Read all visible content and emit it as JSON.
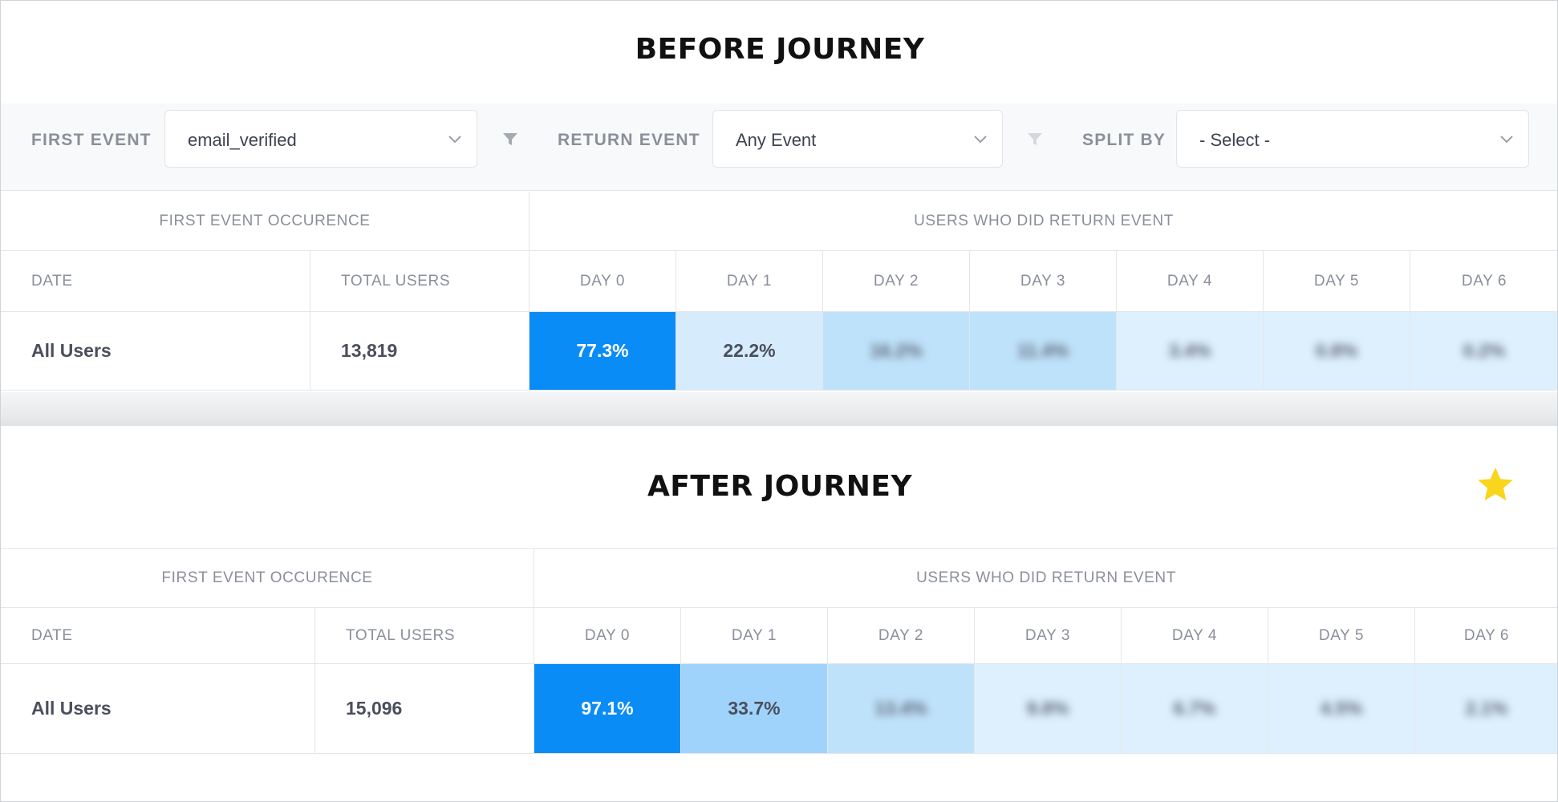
{
  "before": {
    "title": "BEFORE JOURNEY",
    "filters": {
      "first_event_label": "FIRST EVENT",
      "first_event_value": "email_verified",
      "return_event_label": "RETURN EVENT",
      "return_event_value": "Any Event",
      "split_by_label": "SPLIT BY",
      "split_by_value": "- Select -"
    },
    "table": {
      "group_left": "FIRST EVENT OCCURENCE",
      "group_right": "USERS WHO DID RETURN EVENT",
      "col_date": "DATE",
      "col_total": "TOTAL USERS",
      "days": [
        "DAY 0",
        "DAY 1",
        "DAY 2",
        "DAY 3",
        "DAY 4",
        "DAY 5",
        "DAY 6"
      ],
      "row_label": "All Users",
      "row_total": "13,819",
      "values": [
        "77.3%",
        "22.2%",
        "16.2%",
        "11.4%",
        "3.4%",
        "0.8%",
        "0.2%"
      ]
    }
  },
  "after": {
    "title": "AFTER JOURNEY",
    "table": {
      "group_left": "FIRST EVENT OCCURENCE",
      "group_right": "USERS WHO DID RETURN EVENT",
      "col_date": "DATE",
      "col_total": "TOTAL USERS",
      "days": [
        "DAY 0",
        "DAY 1",
        "DAY 2",
        "DAY 3",
        "DAY 4",
        "DAY 5",
        "DAY 6"
      ],
      "row_label": "All Users",
      "row_total": "15,096",
      "values": [
        "97.1%",
        "33.7%",
        "13.4%",
        "9.8%",
        "6.7%",
        "4.5%",
        "2.1%"
      ]
    }
  },
  "colors": {
    "day0": "#0a8cf7",
    "day1_before": "#d6ecfc",
    "day1_after": "#9fd3fb",
    "mid": "#bfe2fb",
    "light": "#def0fd",
    "title": "#111111",
    "star": "#f9d51c"
  },
  "icons": [
    "star-icon",
    "chevron-down-icon",
    "filter-icon"
  ]
}
